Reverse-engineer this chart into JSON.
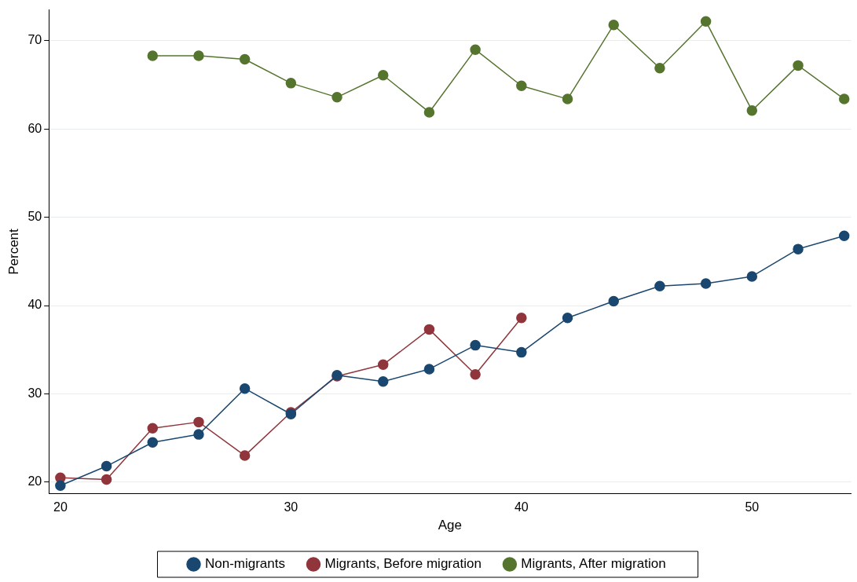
{
  "chart_data": {
    "type": "line",
    "xlabel": "Age",
    "ylabel": "Percent",
    "x": [
      20,
      22,
      24,
      26,
      28,
      30,
      32,
      34,
      36,
      38,
      40,
      42,
      44,
      46,
      48,
      50,
      52,
      54
    ],
    "series": [
      {
        "name": "Non-migrants",
        "color": "#1a476f",
        "values": [
          19.6,
          21.8,
          24.5,
          25.4,
          30.6,
          27.7,
          32.1,
          31.4,
          32.8,
          35.5,
          34.7,
          38.6,
          40.5,
          42.2,
          42.5,
          43.3,
          46.4,
          47.9
        ]
      },
      {
        "name": "Migrants, Before migration",
        "color": "#90353b",
        "values": [
          20.5,
          20.3,
          26.1,
          26.8,
          23.0,
          27.9,
          32.0,
          33.3,
          37.3,
          32.2,
          38.6,
          null,
          null,
          null,
          null,
          null,
          null,
          null
        ]
      },
      {
        "name": "Migrants, After migration",
        "color": "#55752f",
        "values": [
          null,
          null,
          68.3,
          68.3,
          67.9,
          65.2,
          63.6,
          66.1,
          61.9,
          69.0,
          64.9,
          63.4,
          71.8,
          66.9,
          72.2,
          62.1,
          67.2,
          63.4
        ]
      }
    ],
    "xlim": [
      19.5,
      54.3
    ],
    "xticks": [
      20,
      30,
      40,
      50
    ],
    "ylim": [
      18.7,
      73.5
    ],
    "yticks": [
      20,
      30,
      40,
      50,
      60,
      70
    ],
    "grid": "y",
    "legend": "bottom",
    "marker": "circle",
    "line_style": "solid"
  }
}
